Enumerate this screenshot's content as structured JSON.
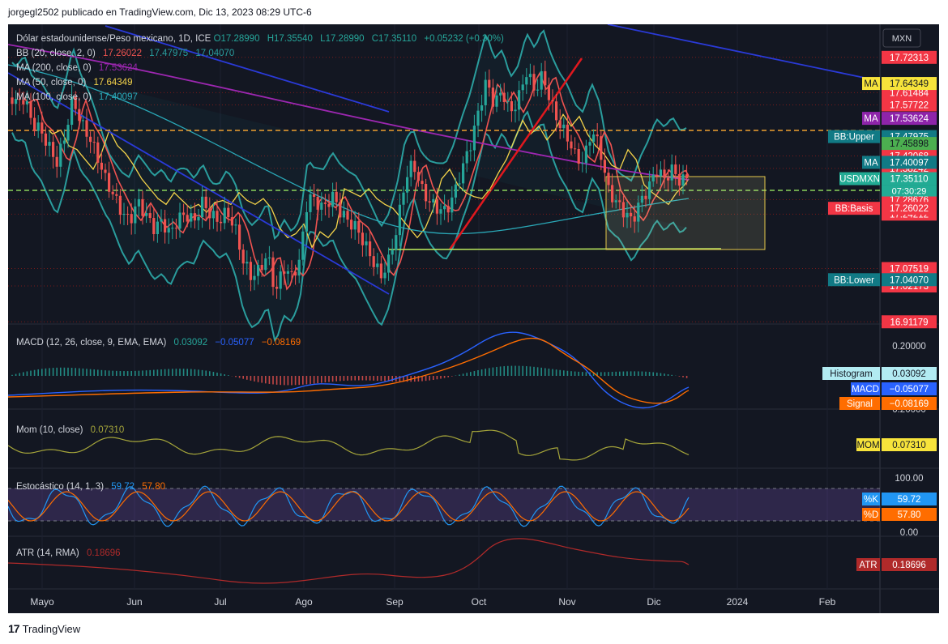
{
  "header": {
    "text": "jorgegl2502 publicado en TradingView.com, Dic 13, 2023 08:29 UTC-6"
  },
  "footer": {
    "brand": "TradingView"
  },
  "currency": "MXN",
  "main_legend": {
    "symbol": "Dólar estadounidense/Peso mexicano, 1D, ICE",
    "o": "O17.28990",
    "h": "H17.35540",
    "l": "L17.28990",
    "c": "C17.35110",
    "chg": "+0.05232 (+0.30%)",
    "bb_label": "BB (20, close, 2, 0)",
    "bb_basis": "17.26022",
    "bb_upper": "17.47975",
    "bb_lower": "17.04070",
    "ma200_label": "MA (200, close, 0)",
    "ma200": "17.53624",
    "ma50_label": "MA (50, close, 0)",
    "ma50": "17.64349",
    "ma100_label": "MA (100, close, 0)",
    "ma100": "17.40097"
  },
  "price_scale": [
    "17.72313",
    "17.61484",
    "17.57722",
    "17.42068",
    "17.38242",
    "17.28676",
    "17.24212",
    "17.07519",
    "17.02173",
    "16.91179"
  ],
  "tags": {
    "ma50": {
      "name": "MA",
      "value": "17.64349"
    },
    "ma200": {
      "name": "MA",
      "value": "17.53624"
    },
    "bb_upper": {
      "name": "BB:Upper",
      "value": "17.47975"
    },
    "plain": {
      "value": "17.45898"
    },
    "ma100": {
      "name": "MA",
      "value": "17.40097"
    },
    "usdmxn": {
      "name": "USDMXN",
      "value": "17.35110",
      "time": "07:30:29"
    },
    "bb_basis": {
      "name": "BB:Basis",
      "value": "17.26022"
    },
    "bb_lower": {
      "name": "BB:Lower",
      "value": "17.04070"
    }
  },
  "macd": {
    "legend": "MACD (12, 26, close, 9, EMA, EMA)",
    "v1": "0.03092",
    "v2": "−0.05077",
    "v3": "−0.08169",
    "scale_top": "0.20000",
    "scale_bottom": "0.20000",
    "histogram_tag": {
      "name": "Histogram",
      "value": "0.03092"
    },
    "macd_tag": {
      "name": "MACD",
      "value": "−0.05077"
    },
    "signal_tag": {
      "name": "Signal",
      "value": "−0.08169"
    }
  },
  "mom": {
    "legend": "Mom (10, close)",
    "value": "0.07310",
    "tag": {
      "name": "MOM",
      "value": "0.07310"
    }
  },
  "stoch": {
    "legend": "Estocástico (14, 1, 3)",
    "k": "59.72",
    "d": "57.80",
    "scale_top": "100.00",
    "scale_bottom": "0.00",
    "k_tag": {
      "name": "%K",
      "value": "59.72"
    },
    "d_tag": {
      "name": "%D",
      "value": "57.80"
    }
  },
  "atr": {
    "legend": "ATR (14, RMA)",
    "value": "0.18696",
    "tag": {
      "name": "ATR",
      "value": "0.18696"
    }
  },
  "time_axis": [
    "Mayo",
    "Jun",
    "Jul",
    "Ago",
    "Sep",
    "Oct",
    "Nov",
    "Dic",
    "2024",
    "Feb"
  ],
  "colors": {
    "bg": "#131722",
    "up": "#26a69a",
    "down": "#ef5350",
    "bb": "#2a9d9d",
    "ma50": "#f3d34a",
    "ma100": "#2aa9b8",
    "ma200": "#9c27b0",
    "trend": "#2a3ad8",
    "support": "#b6e35b",
    "resistance": "#f0a030",
    "macd": "#2962ff",
    "signal": "#ff6d00",
    "mom": "#a5a53a",
    "atr": "#b02a2a"
  },
  "chart_data": {
    "type": "candlestick",
    "title": "Dólar estadounidense/Peso mexicano, 1D, ICE",
    "x": [
      "Mayo",
      "Jun",
      "Jul",
      "Ago",
      "Sep",
      "Oct",
      "Nov",
      "Dic"
    ],
    "close_approx": [
      17.6,
      17.4,
      17.1,
      17.35,
      17.05,
      17.7,
      17.55,
      17.38,
      17.35
    ],
    "ylim": [
      16.9,
      17.75
    ],
    "series": [
      {
        "name": "BB Basis",
        "last": 17.26022
      },
      {
        "name": "BB Upper",
        "last": 17.47975
      },
      {
        "name": "BB Lower",
        "last": 17.0407
      },
      {
        "name": "MA 200",
        "last": 17.53624
      },
      {
        "name": "MA 50",
        "last": 17.64349
      },
      {
        "name": "MA 100",
        "last": 17.40097
      }
    ],
    "last": {
      "open": 17.2899,
      "high": 17.3554,
      "low": 17.2899,
      "close": 17.3511
    }
  }
}
